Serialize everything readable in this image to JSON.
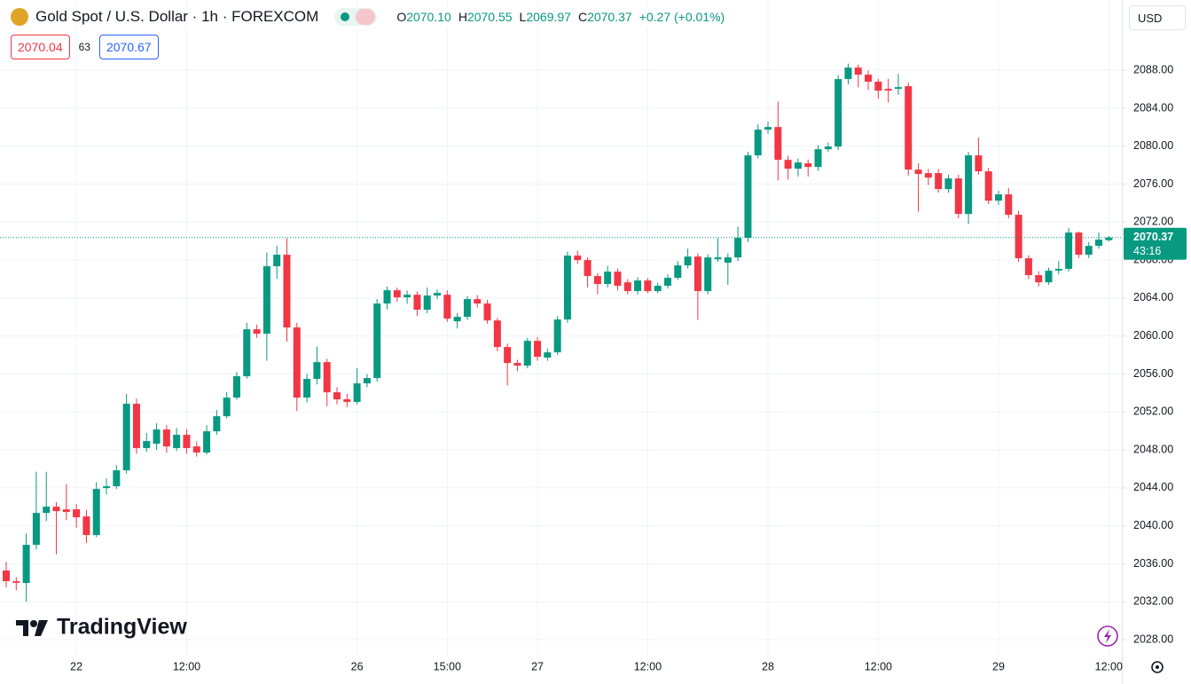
{
  "header": {
    "title": "Gold Spot / U.S. Dollar · 1h · FOREXCOM",
    "ohlc": [
      {
        "key": "O",
        "value": "2070.10"
      },
      {
        "key": "H",
        "value": "2070.55"
      },
      {
        "key": "L",
        "value": "2069.97"
      },
      {
        "key": "C",
        "value": "2070.37"
      }
    ],
    "change": "+0.27 (+0.01%)",
    "bid": "2070.04",
    "spread": "63",
    "ask": "2070.67",
    "currency": "USD"
  },
  "footer": {
    "watermark": "TradingView"
  },
  "chart_data": {
    "type": "candlestick",
    "up_color": "#089981",
    "down_color": "#f23645",
    "grid": true,
    "countdown": "43:16",
    "xlim": [
      -0.62,
      111.3
    ],
    "ylim": [
      2025.3,
      2095.4
    ],
    "xticks": [
      {
        "value": 7,
        "label": "22"
      },
      {
        "value": 18,
        "label": "12:00"
      },
      {
        "value": 35,
        "label": "26"
      },
      {
        "value": 44,
        "label": "15:00"
      },
      {
        "value": 53,
        "label": "27"
      },
      {
        "value": 64,
        "label": "12:00"
      },
      {
        "value": 76,
        "label": "28"
      },
      {
        "value": 87,
        "label": "12:00"
      },
      {
        "value": 99,
        "label": "29"
      },
      {
        "value": 110,
        "label": "12:00"
      }
    ],
    "yticks": [
      {
        "value": 2028,
        "label": "2028.00"
      },
      {
        "value": 2032,
        "label": "2032.00"
      },
      {
        "value": 2036,
        "label": "2036.00"
      },
      {
        "value": 2040,
        "label": "2040.00"
      },
      {
        "value": 2044,
        "label": "2044.00"
      },
      {
        "value": 2048,
        "label": "2048.00"
      },
      {
        "value": 2052,
        "label": "2052.00"
      },
      {
        "value": 2056,
        "label": "2056.00"
      },
      {
        "value": 2060,
        "label": "2060.00"
      },
      {
        "value": 2064,
        "label": "2064.00"
      },
      {
        "value": 2068,
        "label": "2068.00"
      },
      {
        "value": 2072,
        "label": "2072.00"
      },
      {
        "value": 2076,
        "label": "2076.00"
      },
      {
        "value": 2080,
        "label": "2080.00"
      },
      {
        "value": 2084,
        "label": "2084.00"
      },
      {
        "value": 2088,
        "label": "2088.00"
      }
    ],
    "open": [
      2035.29,
      2034.17,
      2033.98,
      2038.0,
      2041.36,
      2042.02,
      2041.74,
      2041.74,
      2040.99,
      2039.03,
      2043.98,
      2044.17,
      2045.85,
      2052.86,
      2048.19,
      2048.65,
      2050.15,
      2048.19,
      2049.59,
      2048.37,
      2047.72,
      2049.96,
      2051.55,
      2053.51,
      2055.76,
      2060.71,
      2060.24,
      2067.35,
      2068.56,
      2060.9,
      2053.51,
      2055.48,
      2057.25,
      2054.07,
      2053.33,
      2053.05,
      2055.01,
      2055.57,
      2063.42,
      2064.82,
      2064.07,
      2064.35,
      2062.77,
      2064.26,
      2064.35,
      2061.55,
      2062.02,
      2063.89,
      2063.42,
      2061.64,
      2058.84,
      2057.16,
      2056.88,
      2059.49,
      2057.72,
      2058.28,
      2061.74,
      2068.47,
      2068.0,
      2066.32,
      2065.48,
      2066.78,
      2065.66,
      2064.73,
      2065.85,
      2064.73,
      2065.29,
      2066.13,
      2067.44,
      2068.37,
      2064.73,
      2068.09,
      2067.72,
      2068.28,
      2070.34,
      2079.03,
      2081.74,
      2082.02,
      2078.56,
      2077.63,
      2078.19,
      2077.81,
      2079.68,
      2079.96,
      2087.07,
      2088.28,
      2087.53,
      2086.79,
      2086.04,
      2086.04,
      2086.32,
      2077.53,
      2077.16,
      2077.16,
      2075.48,
      2076.6,
      2072.86,
      2079.03,
      2077.35,
      2074.26,
      2074.92,
      2072.77,
      2068.19,
      2066.41,
      2065.66,
      2066.88,
      2067.07,
      2070.9,
      2068.56,
      2069.5,
      2070.1
    ],
    "high": [
      2036.2,
      2034.6,
      2039.2,
      2045.7,
      2045.7,
      2042.5,
      2044.4,
      2042.3,
      2041.7,
      2044.6,
      2045.0,
      2046.4,
      2053.9,
      2053.4,
      2049.8,
      2050.8,
      2050.6,
      2050.3,
      2050.2,
      2048.9,
      2050.6,
      2052.2,
      2054.1,
      2056.2,
      2061.4,
      2061.2,
      2068.8,
      2069.5,
      2070.3,
      2061.4,
      2056.0,
      2058.9,
      2057.6,
      2054.6,
      2053.9,
      2056.6,
      2056.0,
      2063.9,
      2065.2,
      2065.1,
      2064.8,
      2064.7,
      2065.1,
      2064.9,
      2064.8,
      2062.4,
      2064.2,
      2064.3,
      2063.8,
      2061.9,
      2059.2,
      2057.5,
      2059.8,
      2059.9,
      2058.7,
      2062.1,
      2068.9,
      2069.0,
      2068.3,
      2066.6,
      2067.4,
      2067.1,
      2066.0,
      2066.2,
      2066.1,
      2065.6,
      2066.5,
      2067.9,
      2069.2,
      2068.7,
      2068.6,
      2070.3,
      2068.7,
      2071.5,
      2079.4,
      2082.3,
      2082.6,
      2084.7,
      2079.0,
      2078.7,
      2078.6,
      2080.1,
      2080.4,
      2087.5,
      2088.7,
      2088.6,
      2088.0,
      2087.1,
      2087.1,
      2087.6,
      2086.7,
      2078.2,
      2077.6,
      2077.6,
      2077.0,
      2077.0,
      2079.4,
      2080.9,
      2077.7,
      2075.3,
      2075.6,
      2073.2,
      2068.5,
      2066.8,
      2067.2,
      2067.9,
      2071.4,
      2071.0,
      2069.9,
      2070.9,
      2070.55
    ],
    "low": [
      2033.5,
      2033.2,
      2032.0,
      2037.5,
      2040.5,
      2037.0,
      2040.6,
      2039.8,
      2038.2,
      2038.8,
      2043.3,
      2043.9,
      2045.5,
      2047.6,
      2047.8,
      2048.0,
      2047.7,
      2047.9,
      2047.6,
      2047.3,
      2047.5,
      2049.6,
      2051.3,
      2053.3,
      2055.5,
      2059.8,
      2057.4,
      2066.0,
      2059.4,
      2052.1,
      2053.0,
      2054.9,
      2052.6,
      2052.8,
      2052.5,
      2052.8,
      2054.6,
      2055.2,
      2062.8,
      2063.6,
      2063.4,
      2062.1,
      2062.4,
      2063.9,
      2061.5,
      2060.8,
      2061.7,
      2063.0,
      2061.3,
      2058.4,
      2054.8,
      2056.3,
      2056.6,
      2057.4,
      2057.4,
      2058.0,
      2061.4,
      2067.6,
      2065.1,
      2064.4,
      2065.1,
      2064.8,
      2064.4,
      2064.4,
      2064.5,
      2064.5,
      2065.0,
      2065.9,
      2067.1,
      2061.7,
      2064.4,
      2067.8,
      2065.4,
      2067.9,
      2069.9,
      2078.7,
      2081.3,
      2076.4,
      2076.5,
      2076.8,
      2076.8,
      2077.4,
      2079.4,
      2079.6,
      2086.5,
      2086.2,
      2085.9,
      2085.0,
      2084.6,
      2085.4,
      2076.9,
      2073.1,
      2075.9,
      2075.1,
      2075.1,
      2072.4,
      2071.8,
      2077.0,
      2073.9,
      2073.8,
      2072.4,
      2067.8,
      2066.0,
      2065.2,
      2065.4,
      2066.5,
      2066.8,
      2068.2,
      2068.2,
      2069.2,
      2069.97
    ],
    "close": [
      2034.17,
      2034.0,
      2038.0,
      2041.36,
      2042.02,
      2041.55,
      2041.46,
      2040.9,
      2039.03,
      2043.89,
      2044.17,
      2045.85,
      2052.86,
      2048.19,
      2048.93,
      2050.15,
      2048.37,
      2049.59,
      2048.19,
      2047.72,
      2049.96,
      2051.55,
      2053.51,
      2055.76,
      2060.71,
      2060.24,
      2067.35,
      2068.56,
      2060.9,
      2053.51,
      2055.48,
      2057.25,
      2054.07,
      2053.33,
      2053.05,
      2055.01,
      2055.57,
      2063.42,
      2064.82,
      2064.07,
      2064.35,
      2062.77,
      2064.26,
      2064.54,
      2061.83,
      2062.02,
      2063.89,
      2063.42,
      2061.64,
      2058.84,
      2057.16,
      2056.88,
      2059.49,
      2057.81,
      2058.28,
      2061.74,
      2068.47,
      2068.0,
      2066.32,
      2065.48,
      2066.78,
      2065.29,
      2064.73,
      2065.85,
      2064.73,
      2065.29,
      2066.13,
      2067.44,
      2068.37,
      2064.73,
      2068.28,
      2068.28,
      2068.28,
      2070.34,
      2079.03,
      2081.74,
      2082.02,
      2078.56,
      2077.63,
      2078.28,
      2077.81,
      2079.68,
      2079.96,
      2087.07,
      2088.28,
      2087.53,
      2086.79,
      2085.85,
      2085.85,
      2086.22,
      2077.53,
      2077.07,
      2076.69,
      2075.48,
      2076.6,
      2072.86,
      2079.03,
      2077.35,
      2074.26,
      2074.92,
      2072.77,
      2068.19,
      2066.41,
      2065.66,
      2066.88,
      2067.07,
      2070.9,
      2068.56,
      2069.5,
      2070.15,
      2070.37
    ]
  }
}
